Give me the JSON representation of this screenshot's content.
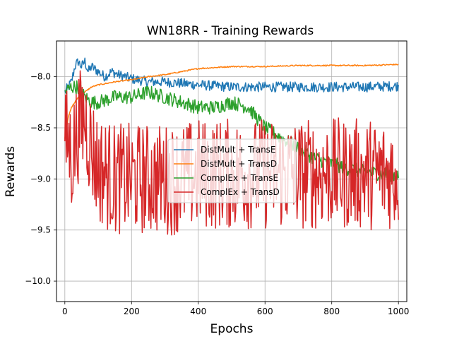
{
  "chart_data": {
    "type": "line",
    "title": "WN18RR - Training Rewards",
    "xlabel": "Epochs",
    "ylabel": "Rewards",
    "xlim": [
      -25,
      1025
    ],
    "ylim": [
      -10.2,
      -7.65
    ],
    "xticks": [
      0,
      200,
      400,
      600,
      800,
      1000
    ],
    "yticks": [
      -10.0,
      -9.5,
      -9.0,
      -8.5,
      -8.0
    ],
    "ytick_labels": [
      "−10.0",
      "−9.5",
      "−9.0",
      "−8.5",
      "−8.0"
    ],
    "grid": true,
    "legend_position": "center",
    "series": [
      {
        "name": "DistMult + TransE",
        "color": "#1f77b4",
        "x": [
          0,
          10,
          20,
          30,
          40,
          50,
          60,
          70,
          80,
          100,
          120,
          140,
          160,
          180,
          200,
          250,
          300,
          400,
          500,
          600,
          700,
          800,
          900,
          1000
        ],
        "y": [
          -8.15,
          -8.1,
          -8.05,
          -7.9,
          -7.85,
          -7.9,
          -7.85,
          -7.95,
          -7.9,
          -7.95,
          -8.0,
          -7.95,
          -7.98,
          -8.0,
          -8.02,
          -8.05,
          -8.05,
          -8.08,
          -8.1,
          -8.1,
          -8.1,
          -8.1,
          -8.1,
          -8.09
        ],
        "noise": 0.05
      },
      {
        "name": "DistMult + TransD",
        "color": "#ff7f0e",
        "x": [
          0,
          5,
          10,
          20,
          30,
          40,
          60,
          80,
          100,
          150,
          200,
          250,
          300,
          350,
          400,
          450,
          500,
          600,
          700,
          800,
          900,
          1000
        ],
        "y": [
          -8.6,
          -8.5,
          -8.4,
          -8.3,
          -8.25,
          -8.2,
          -8.15,
          -8.1,
          -8.08,
          -8.05,
          -8.03,
          -8.0,
          -7.98,
          -7.95,
          -7.92,
          -7.91,
          -7.9,
          -7.9,
          -7.89,
          -7.89,
          -7.89,
          -7.88
        ],
        "noise": 0.006
      },
      {
        "name": "ComplEx + TransE",
        "color": "#2ca02c",
        "x": [
          0,
          20,
          40,
          60,
          80,
          100,
          150,
          200,
          250,
          300,
          350,
          400,
          450,
          500,
          550,
          600,
          650,
          700,
          750,
          800,
          850,
          900,
          950,
          1000
        ],
        "y": [
          -8.15,
          -8.1,
          -8.1,
          -8.2,
          -8.25,
          -8.25,
          -8.2,
          -8.2,
          -8.15,
          -8.2,
          -8.25,
          -8.3,
          -8.3,
          -8.25,
          -8.3,
          -8.5,
          -8.6,
          -8.7,
          -8.8,
          -8.85,
          -8.9,
          -8.93,
          -8.95,
          -8.96
        ],
        "noise": 0.07
      },
      {
        "name": "ComplEx + TransD",
        "color": "#d62728",
        "x": [
          0,
          10,
          20,
          40,
          60,
          80,
          100,
          150,
          200,
          250,
          300,
          350,
          400,
          500,
          600,
          700,
          800,
          900,
          1000
        ],
        "y": [
          -8.7,
          -8.6,
          -8.8,
          -8.5,
          -8.4,
          -8.7,
          -8.9,
          -9.0,
          -9.0,
          -9.0,
          -9.0,
          -9.0,
          -8.95,
          -8.95,
          -8.95,
          -8.95,
          -8.95,
          -8.95,
          -8.95
        ],
        "noise": 0.55
      }
    ]
  }
}
